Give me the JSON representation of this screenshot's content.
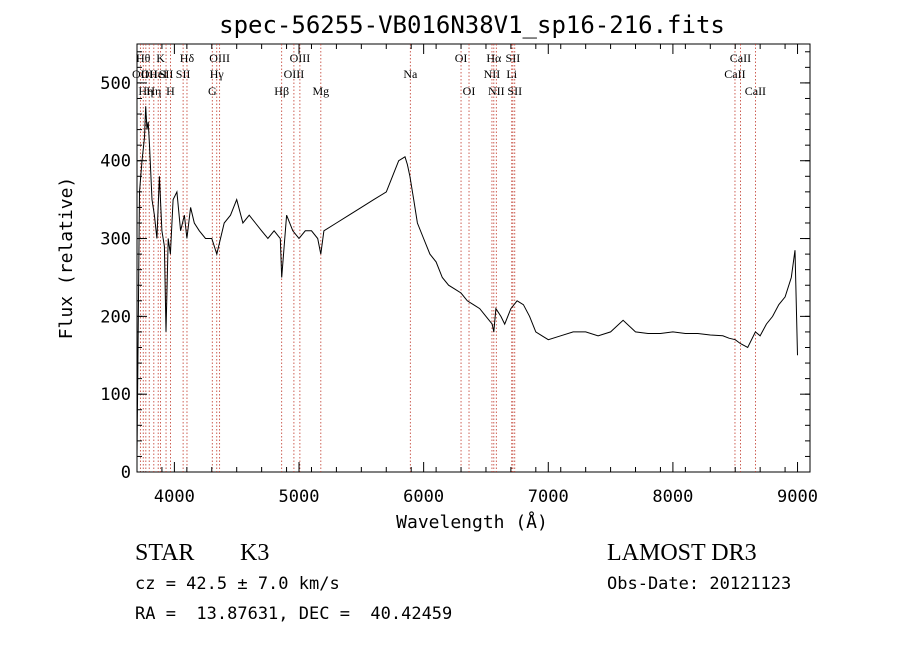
{
  "chart_data": {
    "type": "line",
    "title": "spec-56255-VB016N38V1_sp16-216.fits",
    "xlabel": "Wavelength (Å)",
    "ylabel": "Flux (relative)",
    "xlim": [
      3700,
      9100
    ],
    "ylim": [
      0,
      550
    ],
    "x_ticks": [
      4000,
      5000,
      6000,
      7000,
      8000,
      9000
    ],
    "y_ticks": [
      0,
      100,
      200,
      300,
      400,
      500
    ],
    "grid": false,
    "series": [
      {
        "x": [
          3700,
          3720,
          3740,
          3760,
          3770,
          3780,
          3790,
          3800,
          3820,
          3840,
          3860,
          3880,
          3900,
          3920,
          3933,
          3950,
          3968,
          3990,
          4020,
          4050,
          4080,
          4100,
          4130,
          4160,
          4200,
          4250,
          4300,
          4340,
          4400,
          4450,
          4500,
          4550,
          4600,
          4650,
          4700,
          4750,
          4800,
          4850,
          4861,
          4900,
          4950,
          5000,
          5050,
          5100,
          5150,
          5175,
          5200,
          5300,
          5400,
          5500,
          5600,
          5700,
          5750,
          5800,
          5850,
          5870,
          5890,
          5920,
          5950,
          6000,
          6050,
          6100,
          6150,
          6200,
          6250,
          6300,
          6350,
          6400,
          6450,
          6500,
          6550,
          6563,
          6580,
          6620,
          6650,
          6700,
          6750,
          6800,
          6850,
          6900,
          6950,
          7000,
          7100,
          7200,
          7300,
          7400,
          7500,
          7600,
          7700,
          7800,
          7900,
          8000,
          8100,
          8200,
          8300,
          8400,
          8450,
          8500,
          8542,
          8600,
          8662,
          8700,
          8750,
          8800,
          8850,
          8900,
          8950,
          8980,
          9000
        ],
        "y": [
          20,
          360,
          400,
          430,
          470,
          440,
          450,
          420,
          350,
          330,
          300,
          380,
          310,
          290,
          180,
          300,
          280,
          350,
          360,
          310,
          330,
          300,
          340,
          320,
          310,
          300,
          300,
          280,
          320,
          330,
          350,
          320,
          330,
          320,
          310,
          300,
          310,
          300,
          250,
          330,
          310,
          300,
          310,
          310,
          300,
          280,
          310,
          320,
          330,
          340,
          350,
          360,
          380,
          400,
          405,
          395,
          380,
          350,
          320,
          300,
          280,
          270,
          250,
          240,
          235,
          230,
          220,
          215,
          210,
          200,
          190,
          180,
          210,
          200,
          190,
          210,
          220,
          215,
          200,
          180,
          175,
          170,
          175,
          180,
          180,
          175,
          180,
          195,
          180,
          178,
          178,
          180,
          178,
          178,
          176,
          175,
          172,
          170,
          165,
          160,
          180,
          175,
          190,
          200,
          215,
          225,
          250,
          285,
          150
        ]
      }
    ],
    "line_labels": [
      {
        "x": 3727,
        "label": "OII",
        "row": 2
      },
      {
        "x": 3750,
        "label": "Hθ",
        "row": 1
      },
      {
        "x": 3771,
        "label": "Hη",
        "row": 3
      },
      {
        "x": 3798,
        "label": "OII",
        "row": 2
      },
      {
        "x": 3835,
        "label": "Hη",
        "row": 3
      },
      {
        "x": 3870,
        "label": "HeI",
        "row": 2
      },
      {
        "x": 3889,
        "label": "K",
        "row": 1
      },
      {
        "x": 3933,
        "label": "SII",
        "row": 2
      },
      {
        "x": 3968,
        "label": "H",
        "row": 3
      },
      {
        "x": 4070,
        "label": "SII",
        "row": 2
      },
      {
        "x": 4101,
        "label": "Hδ",
        "row": 1
      },
      {
        "x": 4304,
        "label": "G",
        "row": 3
      },
      {
        "x": 4340,
        "label": "Hγ",
        "row": 2
      },
      {
        "x": 4363,
        "label": "OIII",
        "row": 1
      },
      {
        "x": 4861,
        "label": "Hβ",
        "row": 3
      },
      {
        "x": 4959,
        "label": "OIII",
        "row": 2
      },
      {
        "x": 5007,
        "label": "OIII",
        "row": 1
      },
      {
        "x": 5175,
        "label": "Mg",
        "row": 3
      },
      {
        "x": 5893,
        "label": "Na",
        "row": 2
      },
      {
        "x": 6300,
        "label": "OI",
        "row": 1
      },
      {
        "x": 6364,
        "label": "OI",
        "row": 3
      },
      {
        "x": 6548,
        "label": "NII",
        "row": 2
      },
      {
        "x": 6563,
        "label": "Hα",
        "row": 1
      },
      {
        "x": 6583,
        "label": "NII",
        "row": 3
      },
      {
        "x": 6707,
        "label": "Li",
        "row": 2
      },
      {
        "x": 6716,
        "label": "SII",
        "row": 1
      },
      {
        "x": 6731,
        "label": "SII",
        "row": 3
      },
      {
        "x": 8498,
        "label": "CaII",
        "row": 2
      },
      {
        "x": 8542,
        "label": "CaII",
        "row": 1
      },
      {
        "x": 8662,
        "label": "CaII",
        "row": 3
      }
    ]
  },
  "info": {
    "class": "STAR",
    "subclass": "K3",
    "survey": "LAMOST DR3",
    "cz": "cz = 42.5 ± 7.0 km/s",
    "obs_date": "Obs-Date: 20121123",
    "coords": "RA =  13.87631, DEC =  40.42459"
  }
}
